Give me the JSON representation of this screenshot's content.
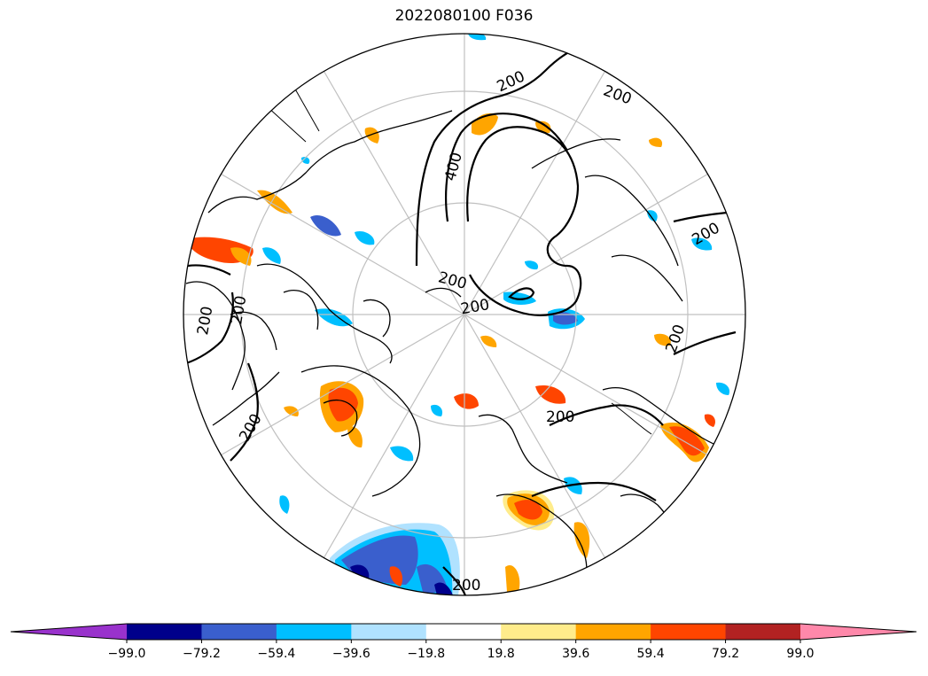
{
  "title": "2022080100 F036",
  "contour_labels": [
    "200",
    "200",
    "400",
    "200",
    "200",
    "200",
    "200",
    "200",
    "200",
    "200",
    "200",
    "200",
    "200"
  ],
  "colorbar": {
    "ticks": [
      "−99.0",
      "−79.2",
      "−59.4",
      "−39.6",
      "−19.8",
      "19.8",
      "39.6",
      "59.4",
      "79.2",
      "99.0"
    ],
    "under_color": "#9932cc",
    "over_color": "#ff88aa",
    "colors": [
      "#00008b",
      "#3a5fcd",
      "#00bfff",
      "#b0e2ff",
      "#ffffff",
      "#ffec8b",
      "#ffa500",
      "#ff4500",
      "#b22222"
    ]
  },
  "shading_colors": {
    "neg_deep": "#00008b",
    "neg_strong": "#3a5fcd",
    "neg_mid": "#00bfff",
    "neg_light": "#b0e2ff",
    "pos_light": "#ffec8b",
    "pos_mid": "#ffa500",
    "pos_strong": "#ff4500"
  }
}
